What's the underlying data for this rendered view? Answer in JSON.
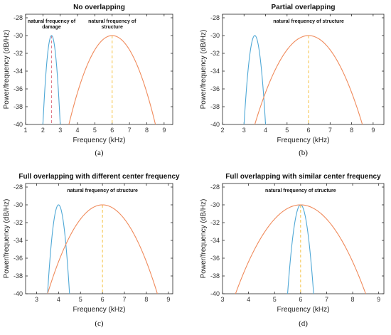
{
  "colors": {
    "damage": "#4fa8d6",
    "structure": "#f08b5c",
    "marker_damage": "#e07a8a",
    "marker_structure": "#f5c242",
    "axis": "#262626",
    "grid_text": "#333333"
  },
  "chart_data": [
    {
      "type": "line",
      "title": "No overlapping",
      "caption": "(a)",
      "xlabel": "Frequency (kHz)",
      "ylabel": "Power/frequency (dB/Hz)",
      "xlim": [
        1,
        9.5
      ],
      "ylim": [
        -40,
        -27.6
      ],
      "xticks": [
        "1",
        "2",
        "3",
        "4",
        "5",
        "6",
        "7",
        "8",
        "9"
      ],
      "yticks": [
        "-40",
        "-38",
        "-36",
        "-34",
        "-32",
        "-30",
        "-28"
      ],
      "grid": false,
      "annotations": [
        {
          "text": "natural frequency of damage",
          "lines": [
            "natural frequency of",
            "damage"
          ],
          "x": 2.5
        },
        {
          "text": "natural frequency of structure",
          "lines": [
            "natural frequency of",
            "structure"
          ],
          "x": 6.0
        }
      ],
      "series": [
        {
          "center": 2.5,
          "peak": -30,
          "low": 2.0,
          "high": 3.0,
          "color": "damage"
        },
        {
          "center": 6.0,
          "peak": -30,
          "low": 3.5,
          "high": 8.5,
          "color": "structure"
        }
      ],
      "markers": [
        {
          "x": 2.5,
          "color": "marker_damage"
        },
        {
          "x": 6.0,
          "color": "marker_structure"
        }
      ]
    },
    {
      "type": "line",
      "title": "Partial overlapping",
      "caption": "(b)",
      "xlabel": "Frequency (kHz)",
      "ylabel": "Power/frequency (dB/Hz)",
      "xlim": [
        2,
        9.5
      ],
      "ylim": [
        -40,
        -27.6
      ],
      "xticks": [
        "2",
        "3",
        "4",
        "5",
        "6",
        "7",
        "8",
        "9"
      ],
      "yticks": [
        "-40",
        "-38",
        "-36",
        "-34",
        "-32",
        "-30",
        "-28"
      ],
      "grid": false,
      "annotations": [
        {
          "text": "natural frequency of structure",
          "lines": [
            "natural frequency of structure"
          ],
          "x": 6.0
        }
      ],
      "series": [
        {
          "center": 3.5,
          "peak": -30,
          "low": 3.0,
          "high": 4.0,
          "color": "damage"
        },
        {
          "center": 6.0,
          "peak": -30,
          "low": 3.5,
          "high": 8.5,
          "color": "structure"
        }
      ],
      "markers": [
        {
          "x": 6.0,
          "color": "marker_structure"
        }
      ]
    },
    {
      "type": "line",
      "title": "Full overlapping with different center frequency",
      "caption": "(c)",
      "xlabel": "Frequency (kHz)",
      "ylabel": "Power/frequency (dB/Hz)",
      "xlim": [
        2.5,
        9.2
      ],
      "ylim": [
        -40,
        -27.6
      ],
      "xticks": [
        "3",
        "4",
        "5",
        "6",
        "7",
        "8",
        "9"
      ],
      "yticks": [
        "-40",
        "-38",
        "-36",
        "-34",
        "-32",
        "-30",
        "-28"
      ],
      "grid": false,
      "annotations": [
        {
          "text": "natural frequency of structure",
          "lines": [
            "natural frequency of structure"
          ],
          "x": 6.0
        }
      ],
      "series": [
        {
          "center": 4.0,
          "peak": -30,
          "low": 3.5,
          "high": 4.5,
          "color": "damage"
        },
        {
          "center": 6.0,
          "peak": -30,
          "low": 3.5,
          "high": 8.5,
          "color": "structure"
        }
      ],
      "markers": [
        {
          "x": 6.0,
          "color": "marker_structure"
        }
      ]
    },
    {
      "type": "line",
      "title": "Full overlapping with similar center frequency",
      "caption": "(d)",
      "xlabel": "Frequency (kHz)",
      "ylabel": "Power/frequency (dB/Hz)",
      "xlim": [
        3,
        9.2
      ],
      "ylim": [
        -40,
        -27.6
      ],
      "xticks": [
        "3",
        "4",
        "5",
        "6",
        "7",
        "8",
        "9"
      ],
      "yticks": [
        "-40",
        "-38",
        "-36",
        "-34",
        "-32",
        "-30",
        "-28"
      ],
      "grid": false,
      "annotations": [
        {
          "text": "natural frequency of structure",
          "lines": [
            "natural frequency of structure"
          ],
          "x": 6.0
        }
      ],
      "series": [
        {
          "center": 6.0,
          "peak": -30,
          "low": 5.5,
          "high": 6.5,
          "color": "damage"
        },
        {
          "center": 6.0,
          "peak": -30,
          "low": 3.5,
          "high": 8.5,
          "color": "structure"
        }
      ],
      "markers": [
        {
          "x": 6.0,
          "color": "marker_structure"
        }
      ]
    }
  ]
}
